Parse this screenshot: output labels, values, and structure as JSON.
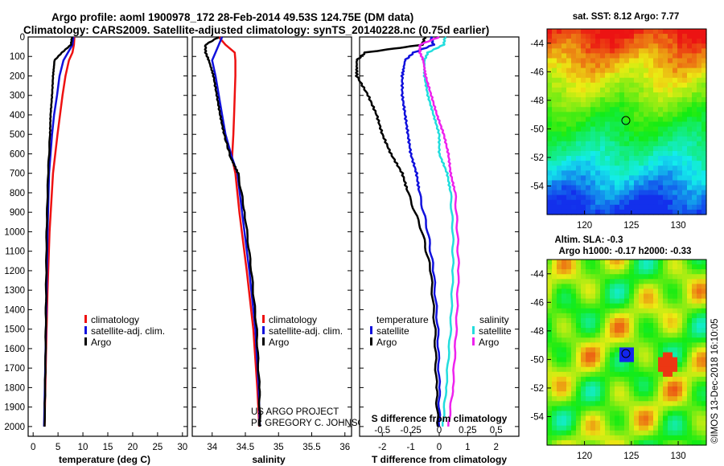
{
  "titles": {
    "line1": "Argo profile: aoml 1900978_172 28-Feb-2014 49.53S 124.75E (DM data)",
    "line2": "Climatology: CARS2009. Satellite-adjusted climatology: synTS_20140228.nc (0.75d earlier)"
  },
  "colors": {
    "climatology": "#ee1111",
    "satellite": "#1111dd",
    "argo": "#000000",
    "sat_salinity": "#22dddd",
    "clim_salinity": "#ee22ee"
  },
  "depth_ticks": [
    "0",
    "100",
    "200",
    "300",
    "400",
    "500",
    "600",
    "700",
    "800",
    "900",
    "1000",
    "1100",
    "1200",
    "1300",
    "1400",
    "1500",
    "1600",
    "1700",
    "1800",
    "1900",
    "2000"
  ],
  "legend": {
    "climatology": "climatology",
    "satellite_adj": "satellite-adj. clim.",
    "argo": "Argo",
    "temperature_head": "temperature",
    "salinity_head": "salinity",
    "satellite": "satellite"
  },
  "credits": {
    "project": "US ARGO PROJECT",
    "pi": "PI: GREGORY C. JOHNSON"
  },
  "watermark": "©IMOS 13-Dec-2018 16:10:05",
  "maps": {
    "sst_title": "sat. SST: 8.12 Argo: 7.77",
    "sla_title1": "Altim. SLA: -0.3",
    "sla_title2": "Argo h1000: -0.17 h2000: -0.33",
    "lat_ticks": [
      "-44",
      "-46",
      "-48",
      "-50",
      "-52",
      "-54"
    ],
    "lon_ticks": [
      "120",
      "125",
      "130"
    ]
  },
  "chart_data": [
    {
      "type": "line",
      "name": "temperature",
      "xlabel": "temperature (deg C)",
      "ylabel": "depth",
      "xlim": [
        -1,
        31
      ],
      "ylim": [
        2050,
        0
      ],
      "xticks": [
        0,
        5,
        10,
        15,
        20,
        25,
        30
      ],
      "xticklabels": [
        "0",
        "5",
        "10",
        "15",
        "20",
        "25",
        "30"
      ],
      "depth": [
        0,
        40,
        80,
        120,
        200,
        300,
        400,
        500,
        700,
        1000,
        1300,
        1600,
        2000
      ],
      "series": [
        {
          "name": "climatology",
          "values": [
            8.3,
            8.2,
            7.9,
            7.2,
            6.5,
            5.9,
            5.4,
            4.9,
            4.0,
            3.3,
            2.9,
            2.6,
            2.3
          ]
        },
        {
          "name": "satellite-adj. clim.",
          "values": [
            8.1,
            7.9,
            7.0,
            6.1,
            5.3,
            4.8,
            4.2,
            3.8,
            3.2,
            2.9,
            2.7,
            2.5,
            2.2
          ]
        },
        {
          "name": "Argo",
          "values": [
            7.8,
            7.6,
            5.8,
            4.3,
            4.0,
            3.8,
            3.5,
            3.4,
            3.0,
            2.7,
            2.6,
            2.5,
            2.3
          ]
        }
      ]
    },
    {
      "type": "line",
      "name": "salinity",
      "xlabel": "salinity",
      "xlim": [
        33.7,
        36.1
      ],
      "ylim": [
        2050,
        0
      ],
      "xticks": [
        34,
        34.5,
        35,
        35.5,
        36
      ],
      "xticklabels": [
        "34",
        "34.5",
        "35",
        "35.5",
        "36"
      ],
      "depth": [
        0,
        40,
        80,
        120,
        200,
        300,
        400,
        500,
        620,
        700,
        900,
        1200,
        1500,
        1800,
        2000
      ],
      "series": [
        {
          "name": "climatology",
          "values": [
            34.1,
            34.2,
            34.34,
            34.35,
            34.35,
            34.34,
            34.33,
            34.32,
            34.3,
            34.35,
            34.41,
            34.52,
            34.62,
            34.68,
            34.71
          ]
        },
        {
          "name": "satellite-adj. clim.",
          "values": [
            34.15,
            34.1,
            34.05,
            34.0,
            34.05,
            34.1,
            34.15,
            34.2,
            34.3,
            34.38,
            34.45,
            34.56,
            34.65,
            34.7,
            34.72
          ]
        },
        {
          "name": "Argo",
          "values": [
            34.1,
            33.9,
            33.9,
            33.95,
            34.02,
            34.07,
            34.12,
            34.18,
            34.28,
            34.39,
            34.49,
            34.59,
            34.67,
            34.71,
            34.72
          ]
        }
      ]
    },
    {
      "type": "line",
      "name": "difference from climatology",
      "xlabel": "T difference from climatology",
      "xlabel_top": "S difference from climatology",
      "t_xlim": [
        -2.8,
        2.8
      ],
      "t_xticks": [
        -2,
        -1,
        0,
        1,
        2
      ],
      "t_xticklabels": [
        "-2",
        "-1",
        "0",
        "1",
        "2"
      ],
      "s_xlim": [
        -0.7,
        0.7
      ],
      "s_xticks": [
        -0.5,
        -0.25,
        0,
        0.25,
        0.5
      ],
      "s_xticklabels": [
        "-0.5",
        "-0.25",
        "0",
        "0.25",
        "0.5"
      ],
      "ylim": [
        2050,
        0
      ],
      "temperature_depth": [
        0,
        40,
        80,
        120,
        200,
        300,
        400,
        500,
        600,
        700,
        800,
        1000,
        1200,
        1500,
        1800,
        2000
      ],
      "salinity_depth": [
        0,
        40,
        80,
        120,
        200,
        300,
        400,
        500,
        600,
        700,
        800,
        1000,
        1200,
        1500,
        1800,
        2000
      ],
      "series": [
        {
          "name": "temperature satellite",
          "group": "temperature",
          "values": [
            -0.3,
            -0.2,
            -0.9,
            -1.2,
            -1.3,
            -1.3,
            -1.2,
            -1.1,
            -1.0,
            -0.8,
            -0.7,
            -0.4,
            -0.2,
            -0.05,
            0.0,
            0.0
          ]
        },
        {
          "name": "temperature Argo",
          "group": "temperature",
          "values": [
            -0.5,
            -0.6,
            -2.6,
            -2.9,
            -2.9,
            -2.5,
            -2.2,
            -2.0,
            -1.7,
            -1.3,
            -1.1,
            -0.6,
            -0.3,
            -0.15,
            -0.1,
            -0.05
          ]
        },
        {
          "name": "salinity satellite",
          "group": "salinity",
          "values": [
            0.05,
            0.04,
            -0.1,
            -0.13,
            -0.13,
            -0.1,
            -0.05,
            0.0,
            0.0,
            0.07,
            0.1,
            0.12,
            0.12,
            0.1,
            0.06,
            0.03
          ]
        },
        {
          "name": "salinity Argo",
          "group": "salinity",
          "values": [
            0.0,
            -0.17,
            -0.17,
            -0.14,
            -0.12,
            -0.07,
            -0.02,
            0.04,
            0.08,
            0.1,
            0.14,
            0.16,
            0.17,
            0.15,
            0.12,
            0.08
          ]
        }
      ]
    }
  ]
}
